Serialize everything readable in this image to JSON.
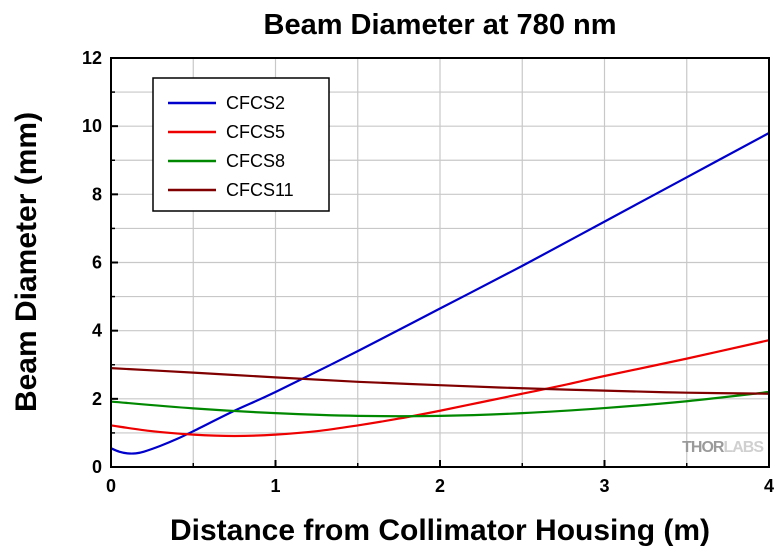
{
  "chart_data": {
    "type": "line",
    "title": "Beam Diameter at 780 nm",
    "xlabel": "Distance from Collimator Housing (m)",
    "ylabel": "Beam Diameter (mm)",
    "xlim": [
      0,
      4
    ],
    "ylim": [
      0,
      12
    ],
    "xticks": [
      "0",
      "1",
      "2",
      "3",
      "4"
    ],
    "yticks": [
      "0",
      "2",
      "4",
      "6",
      "8",
      "10",
      "12"
    ],
    "grid": true,
    "legend_position": "top-left",
    "series": [
      {
        "name": "CFCS2",
        "color": "#0000cc",
        "points": [
          [
            0,
            0.55
          ],
          [
            0.05,
            0.45
          ],
          [
            0.1,
            0.4
          ],
          [
            0.15,
            0.4
          ],
          [
            0.2,
            0.45
          ],
          [
            0.3,
            0.62
          ],
          [
            0.4,
            0.82
          ],
          [
            0.5,
            1.05
          ],
          [
            0.75,
            1.65
          ],
          [
            1,
            2.2
          ],
          [
            1.5,
            3.4
          ],
          [
            2,
            4.65
          ],
          [
            2.5,
            5.9
          ],
          [
            3,
            7.2
          ],
          [
            3.5,
            8.5
          ],
          [
            4,
            9.8
          ]
        ]
      },
      {
        "name": "CFCS5",
        "color": "#ee0000",
        "points": [
          [
            0,
            1.22
          ],
          [
            0.25,
            1.05
          ],
          [
            0.5,
            0.95
          ],
          [
            0.75,
            0.91
          ],
          [
            1,
            0.95
          ],
          [
            1.25,
            1.05
          ],
          [
            1.5,
            1.22
          ],
          [
            1.75,
            1.42
          ],
          [
            2,
            1.65
          ],
          [
            2.25,
            1.9
          ],
          [
            2.5,
            2.15
          ],
          [
            2.75,
            2.4
          ],
          [
            3,
            2.67
          ],
          [
            3.5,
            3.18
          ],
          [
            4,
            3.72
          ]
        ]
      },
      {
        "name": "CFCS8",
        "color": "#008800",
        "points": [
          [
            0,
            1.92
          ],
          [
            0.5,
            1.72
          ],
          [
            1,
            1.58
          ],
          [
            1.5,
            1.5
          ],
          [
            2,
            1.5
          ],
          [
            2.5,
            1.58
          ],
          [
            3,
            1.73
          ],
          [
            3.5,
            1.93
          ],
          [
            4,
            2.2
          ]
        ]
      },
      {
        "name": "CFCS11",
        "color": "#800000",
        "points": [
          [
            0,
            2.9
          ],
          [
            0.5,
            2.77
          ],
          [
            1,
            2.63
          ],
          [
            1.5,
            2.5
          ],
          [
            2,
            2.4
          ],
          [
            2.5,
            2.31
          ],
          [
            3,
            2.24
          ],
          [
            3.5,
            2.18
          ],
          [
            4,
            2.15
          ]
        ]
      }
    ]
  },
  "watermark": {
    "text_dark": "THOR",
    "text_light": "LABS",
    "color_dark": "#9a9a9a",
    "color_light": "#d0d0d0"
  }
}
